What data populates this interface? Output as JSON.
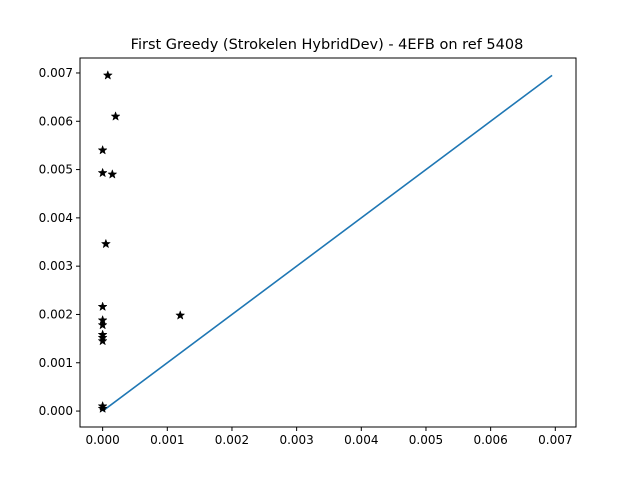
{
  "chart_data": {
    "type": "scatter",
    "title": "First Greedy (Strokelen HybridDev) - 4EFB on ref 5408",
    "xlabel": "",
    "ylabel": "",
    "xlim": [
      -0.00035,
      0.00732
    ],
    "ylim": [
      -0.00033,
      0.00731
    ],
    "x_ticks": [
      "0.000",
      "0.001",
      "0.002",
      "0.003",
      "0.004",
      "0.005",
      "0.006",
      "0.007"
    ],
    "x_tick_values": [
      0,
      0.001,
      0.002,
      0.003,
      0.004,
      0.005,
      0.006,
      0.007
    ],
    "y_ticks": [
      "0.000",
      "0.001",
      "0.002",
      "0.003",
      "0.004",
      "0.005",
      "0.006",
      "0.007"
    ],
    "y_tick_values": [
      0,
      0.001,
      0.002,
      0.003,
      0.004,
      0.005,
      0.006,
      0.007
    ],
    "series": [
      {
        "kind": "scatter",
        "marker": "star",
        "color": "#000000",
        "x": [
          8e-05,
          0.0002,
          0.0,
          0.0,
          0.00015,
          5e-05,
          0.0,
          0.0012,
          0.0,
          0.0,
          0.0,
          0.0,
          0.0,
          0.0,
          0.0
        ],
        "y": [
          0.00695,
          0.0061,
          0.0054,
          0.00493,
          0.0049,
          0.00346,
          0.00216,
          0.00198,
          0.00188,
          0.00178,
          0.00158,
          0.00152,
          0.00145,
          0.0001,
          5e-05
        ]
      },
      {
        "kind": "line",
        "color": "#1f77b4",
        "x": [
          0.0,
          0.00695
        ],
        "y": [
          0.0,
          0.00695
        ]
      }
    ]
  }
}
